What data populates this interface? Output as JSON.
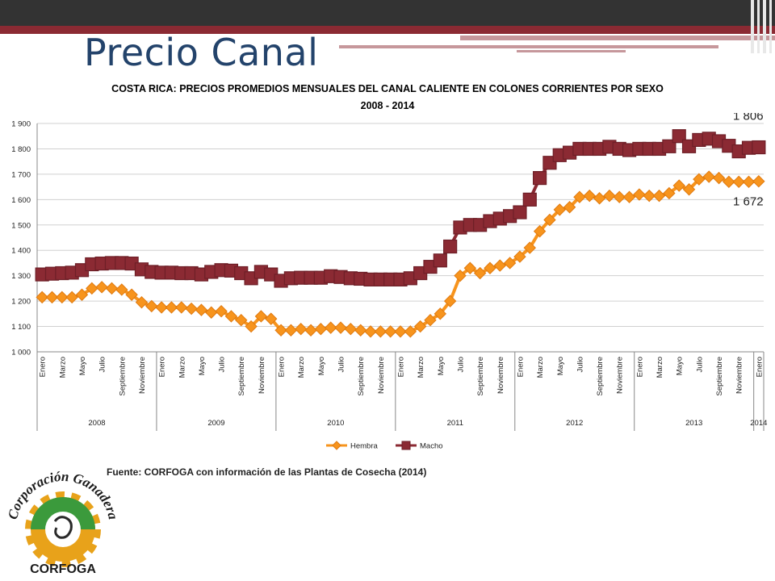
{
  "slide": {
    "title": "Precio Canal",
    "source": "Fuente: CORFOGA con información de las Plantas de Cosecha (2014)"
  },
  "logo": {
    "text_top": "Corporación Ganadera",
    "text_bottom": "CORFOGA"
  },
  "colors": {
    "hembra": "#f7941d",
    "macho": "#8b2a33",
    "title_blue": "#23436b"
  },
  "chart_data": {
    "type": "line",
    "title": "COSTA RICA: PRECIOS PROMEDIOS MENSUALES DEL CANAL CALIENTE EN COLONES CORRIENTES POR SEXO",
    "subtitle": "2008 - 2014",
    "ylim": [
      1000,
      1900
    ],
    "yticks": [
      1000,
      1100,
      1200,
      1300,
      1400,
      1500,
      1600,
      1700,
      1800,
      1900
    ],
    "ytick_labels": [
      "1 000",
      "1 100",
      "1 200",
      "1 300",
      "1 400",
      "1 500",
      "1 600",
      "1 700",
      "1 800",
      "1 900"
    ],
    "grid": true,
    "legend": "bottom",
    "month_labels": [
      "Enero",
      "Marzo",
      "Mayo",
      "Julio",
      "Septiembre",
      "Noviembre"
    ],
    "years": [
      "2008",
      "2009",
      "2010",
      "2011",
      "2012",
      "2013",
      "2014"
    ],
    "annotations": [
      {
        "text": "1 806",
        "series": "Macho"
      },
      {
        "text": "1 672",
        "series": "Hembra"
      }
    ],
    "series": [
      {
        "name": "Hembra",
        "values": [
          1215,
          1215,
          1215,
          1215,
          1225,
          1250,
          1255,
          1250,
          1245,
          1225,
          1195,
          1180,
          1175,
          1175,
          1175,
          1170,
          1165,
          1155,
          1160,
          1140,
          1125,
          1100,
          1140,
          1130,
          1085,
          1085,
          1090,
          1085,
          1090,
          1095,
          1095,
          1090,
          1085,
          1080,
          1080,
          1080,
          1080,
          1080,
          1100,
          1125,
          1150,
          1200,
          1300,
          1330,
          1310,
          1330,
          1340,
          1350,
          1375,
          1410,
          1475,
          1520,
          1560,
          1570,
          1610,
          1615,
          1605,
          1615,
          1610,
          1610,
          1620,
          1615,
          1615,
          1625,
          1655,
          1640,
          1680,
          1690,
          1685,
          1670,
          1670,
          1670,
          1672
        ]
      },
      {
        "name": "Macho",
        "values": [
          1305,
          1308,
          1310,
          1312,
          1322,
          1345,
          1348,
          1350,
          1350,
          1348,
          1325,
          1315,
          1312,
          1312,
          1310,
          1310,
          1305,
          1315,
          1322,
          1320,
          1310,
          1290,
          1315,
          1305,
          1280,
          1290,
          1292,
          1292,
          1292,
          1298,
          1295,
          1290,
          1288,
          1285,
          1285,
          1285,
          1285,
          1290,
          1310,
          1335,
          1360,
          1415,
          1490,
          1500,
          1500,
          1515,
          1525,
          1535,
          1550,
          1600,
          1685,
          1745,
          1775,
          1785,
          1800,
          1800,
          1800,
          1808,
          1800,
          1795,
          1800,
          1800,
          1800,
          1810,
          1850,
          1810,
          1835,
          1840,
          1830,
          1812,
          1790,
          1804,
          1806
        ]
      }
    ]
  }
}
